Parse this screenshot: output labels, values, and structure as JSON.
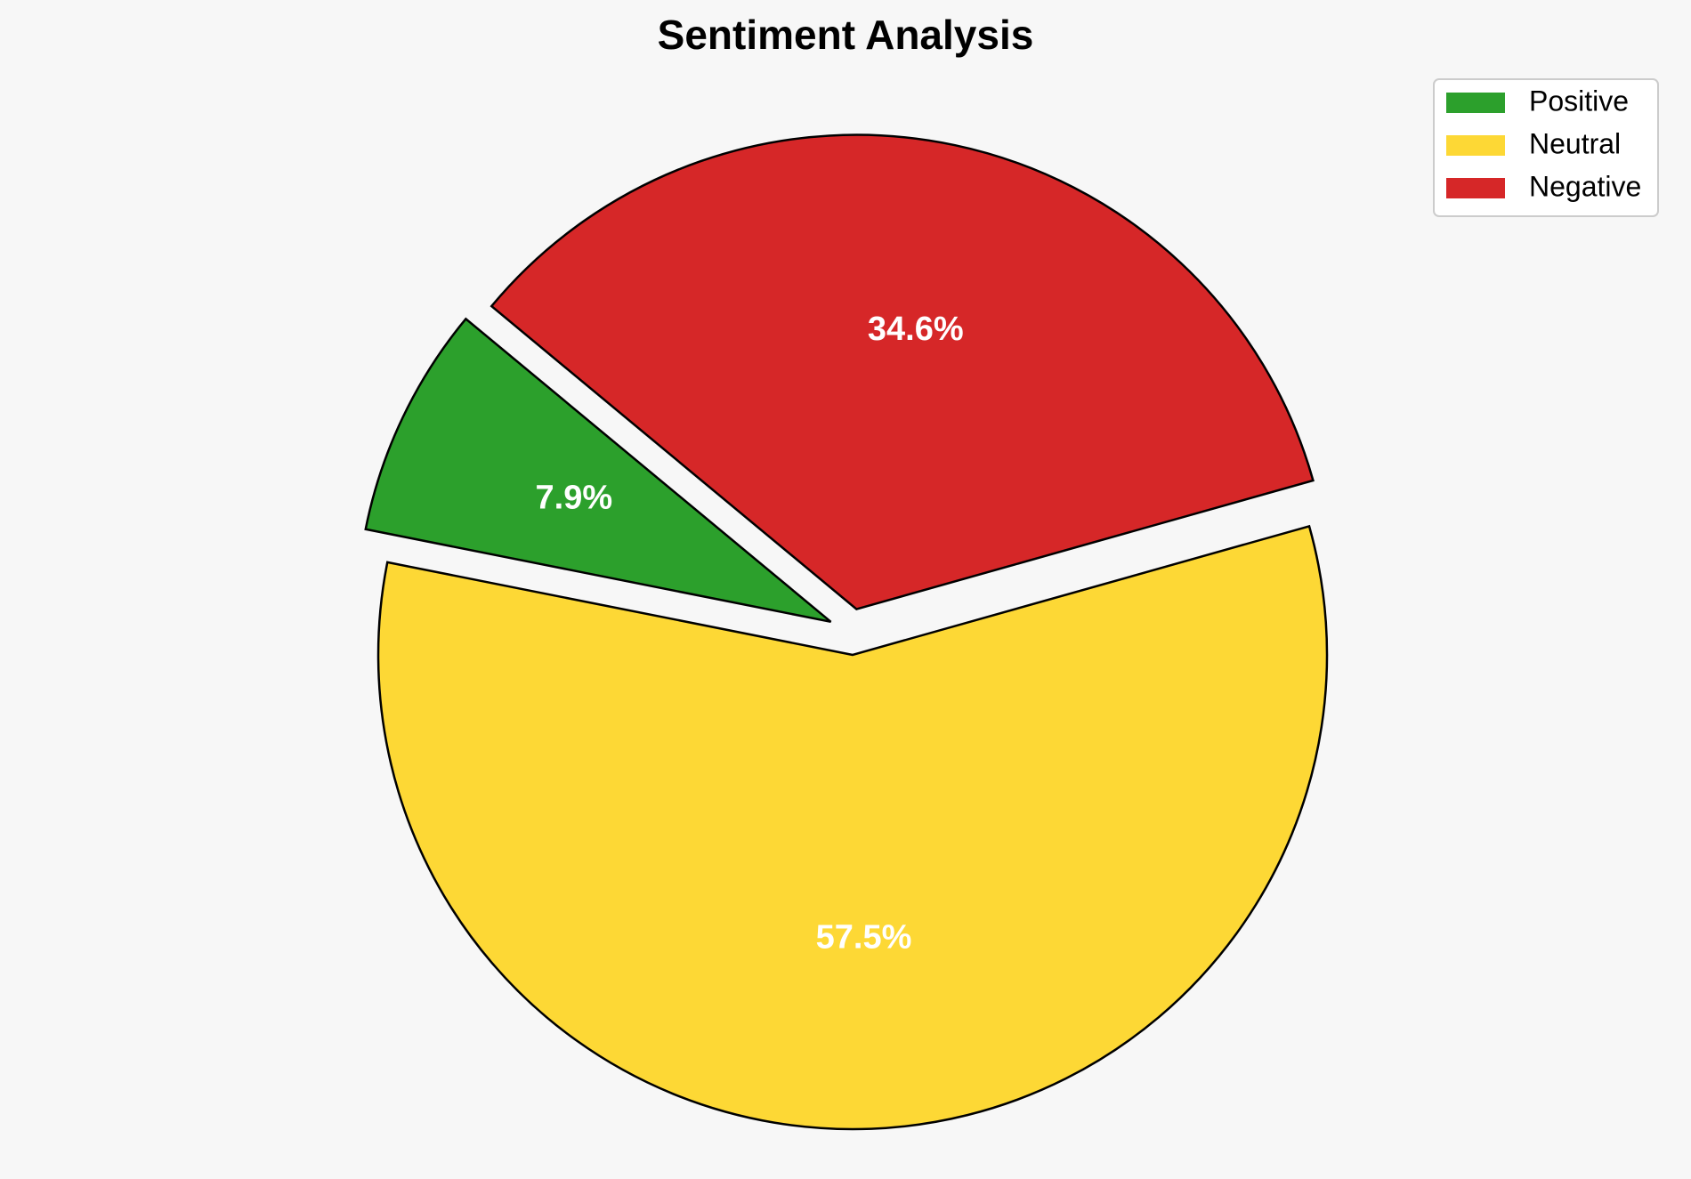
{
  "chart_data": {
    "type": "pie",
    "title": "Sentiment Analysis",
    "slices": [
      {
        "label": "Positive",
        "value": 7.9,
        "display": "7.9%",
        "color": "#2ca02c",
        "exploded": true
      },
      {
        "label": "Neutral",
        "value": 57.5,
        "display": "57.5%",
        "color": "#fdd835",
        "exploded": true
      },
      {
        "label": "Negative",
        "value": 34.6,
        "display": "34.6%",
        "color": "#d62728",
        "exploded": true
      }
    ],
    "legend_position": "top-right",
    "background": "#f7f7f7",
    "edge_color": "#000000"
  }
}
